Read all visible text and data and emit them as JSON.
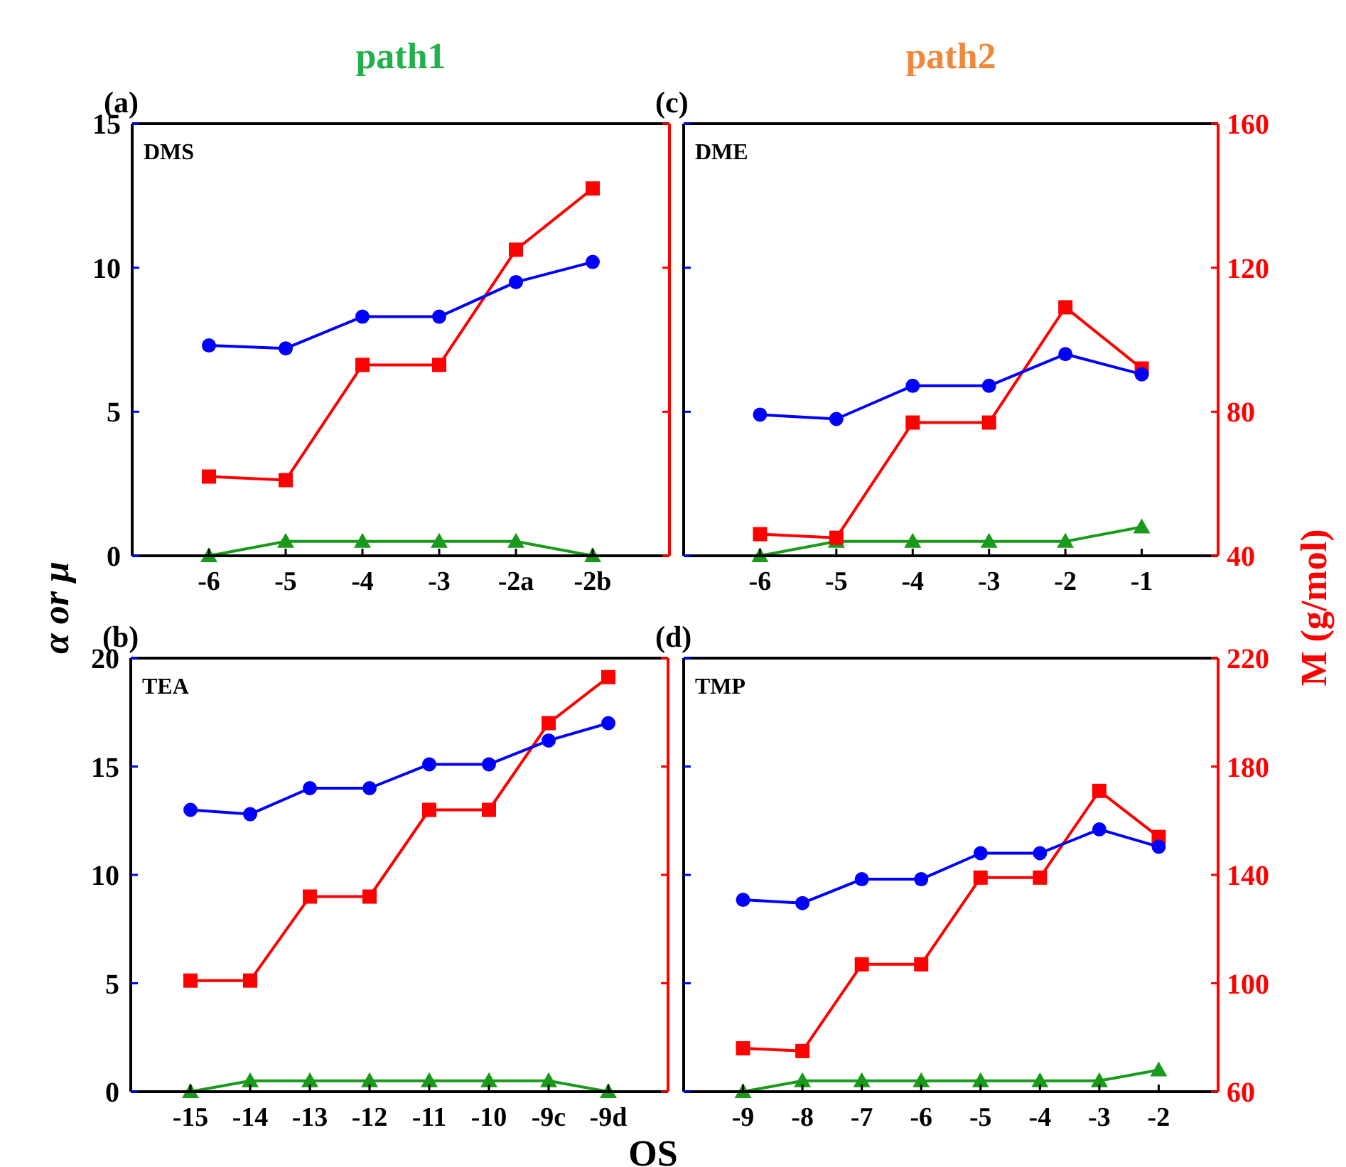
{
  "chart_data": [
    {
      "type": "line",
      "title": "(a)",
      "subtitle": "DMS",
      "annotations": [
        "path1"
      ],
      "ylabel": "α or μ",
      "categories": [
        "-6",
        "-5",
        "-4",
        "-3",
        "-2a",
        "-2b"
      ],
      "ylim": [
        0,
        15
      ],
      "yticks": [
        0,
        5,
        10,
        15
      ],
      "y2lim": [
        40,
        160
      ],
      "tick_labels": "xy",
      "grid": false,
      "line_style": "solid",
      "series": [
        {
          "color": "#0000ff",
          "marker": "circle",
          "values": [
            7.3,
            7.2,
            8.3,
            8.3,
            9.5,
            10.2
          ]
        },
        {
          "color": "#ff0000",
          "marker": "square",
          "axis": "y2",
          "values": [
            62,
            61,
            93,
            93,
            125,
            142
          ]
        },
        {
          "color": "#1a9a1a",
          "marker": "triangle",
          "values": [
            0,
            0.5,
            0.5,
            0.5,
            0.5,
            0
          ]
        }
      ]
    },
    {
      "type": "line",
      "title": "(c)",
      "subtitle": "DME",
      "annotations": [
        "path2"
      ],
      "y2label": "M (g/mol)",
      "categories": [
        "-6",
        "-5",
        "-4",
        "-3",
        "-2",
        "-1"
      ],
      "ylim": [
        0,
        15
      ],
      "y2lim": [
        40,
        160
      ],
      "y2ticks": [
        40,
        80,
        120,
        160
      ],
      "tick_labels": "xy2",
      "grid": false,
      "line_style": "solid",
      "series": [
        {
          "color": "#0000ff",
          "marker": "circle",
          "values": [
            4.9,
            4.75,
            5.9,
            5.9,
            7.0,
            6.3
          ]
        },
        {
          "color": "#ff0000",
          "marker": "square",
          "axis": "y2",
          "values": [
            46,
            45,
            77,
            77,
            109,
            92
          ]
        },
        {
          "color": "#1a9a1a",
          "marker": "triangle",
          "values": [
            0,
            0.5,
            0.5,
            0.5,
            0.5,
            1
          ]
        }
      ]
    },
    {
      "type": "line",
      "title": "(b)",
      "subtitle": "TEA",
      "xlabel": "OS",
      "categories": [
        "-15",
        "-14",
        "-13",
        "-12",
        "-11",
        "-10",
        "-9c",
        "-9d"
      ],
      "ylim": [
        0,
        20
      ],
      "yticks": [
        0,
        5,
        10,
        15,
        20
      ],
      "y2lim": [
        60,
        220
      ],
      "tick_labels": "xy",
      "grid": false,
      "line_style": "solid",
      "series": [
        {
          "color": "#0000ff",
          "marker": "circle",
          "values": [
            13.0,
            12.8,
            14.0,
            14.0,
            15.1,
            15.1,
            16.2,
            17.0
          ]
        },
        {
          "color": "#ff0000",
          "marker": "square",
          "axis": "y2",
          "values": [
            101,
            101,
            132,
            132,
            164,
            164,
            196,
            213
          ]
        },
        {
          "color": "#1a9a1a",
          "marker": "triangle",
          "values": [
            0,
            0.5,
            0.5,
            0.5,
            0.5,
            0.5,
            0.5,
            0
          ]
        }
      ]
    },
    {
      "type": "line",
      "title": "(d)",
      "subtitle": "TMP",
      "categories": [
        "-9",
        "-8",
        "-7",
        "-6",
        "-5",
        "-4",
        "-3",
        "-2"
      ],
      "ylim": [
        0,
        20
      ],
      "y2lim": [
        60,
        220
      ],
      "y2ticks": [
        60,
        100,
        140,
        180,
        220
      ],
      "tick_labels": "xy2",
      "grid": false,
      "line_style": "solid",
      "series": [
        {
          "color": "#0000ff",
          "marker": "circle",
          "values": [
            8.85,
            8.7,
            9.8,
            9.8,
            11.0,
            11.0,
            12.1,
            11.3
          ]
        },
        {
          "color": "#ff0000",
          "marker": "square",
          "axis": "y2",
          "values": [
            76,
            75,
            107,
            107,
            139,
            139,
            171,
            154
          ]
        },
        {
          "color": "#1a9a1a",
          "marker": "triangle",
          "values": [
            0,
            0.5,
            0.5,
            0.5,
            0.5,
            0.5,
            0.5,
            1
          ]
        }
      ]
    }
  ]
}
